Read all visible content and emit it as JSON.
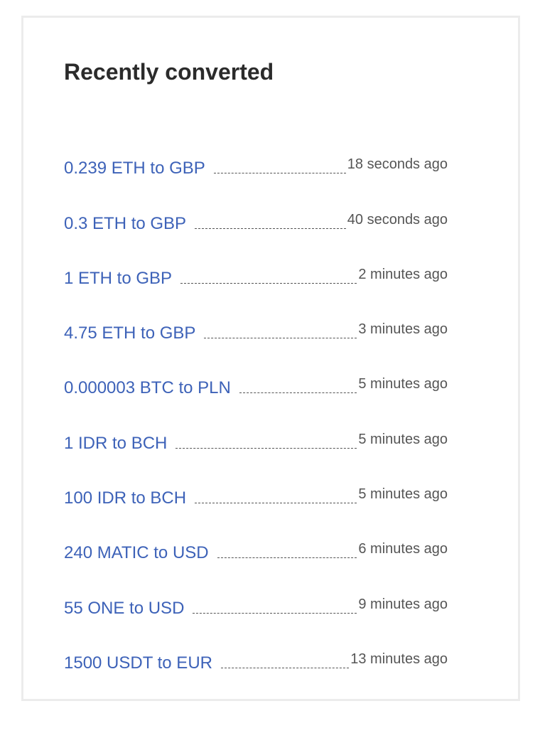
{
  "title": "Recently converted",
  "colors": {
    "link": "#3d62b8",
    "time": "#555555",
    "border": "#ececec"
  },
  "items": [
    {
      "label": "0.239 ETH to GBP",
      "time": "18 seconds ago"
    },
    {
      "label": "0.3 ETH to GBP",
      "time": "40 seconds ago"
    },
    {
      "label": "1 ETH to GBP",
      "time": "2 minutes ago"
    },
    {
      "label": "4.75 ETH to GBP",
      "time": "3 minutes ago"
    },
    {
      "label": "0.000003 BTC to PLN",
      "time": "5 minutes ago"
    },
    {
      "label": "1 IDR to BCH",
      "time": "5 minutes ago"
    },
    {
      "label": "100 IDR to BCH",
      "time": "5 minutes ago"
    },
    {
      "label": "240 MATIC to USD",
      "time": "6 minutes ago"
    },
    {
      "label": "55 ONE to USD",
      "time": "9 minutes ago"
    },
    {
      "label": "1500 USDT to EUR",
      "time": "13 minutes ago"
    }
  ]
}
